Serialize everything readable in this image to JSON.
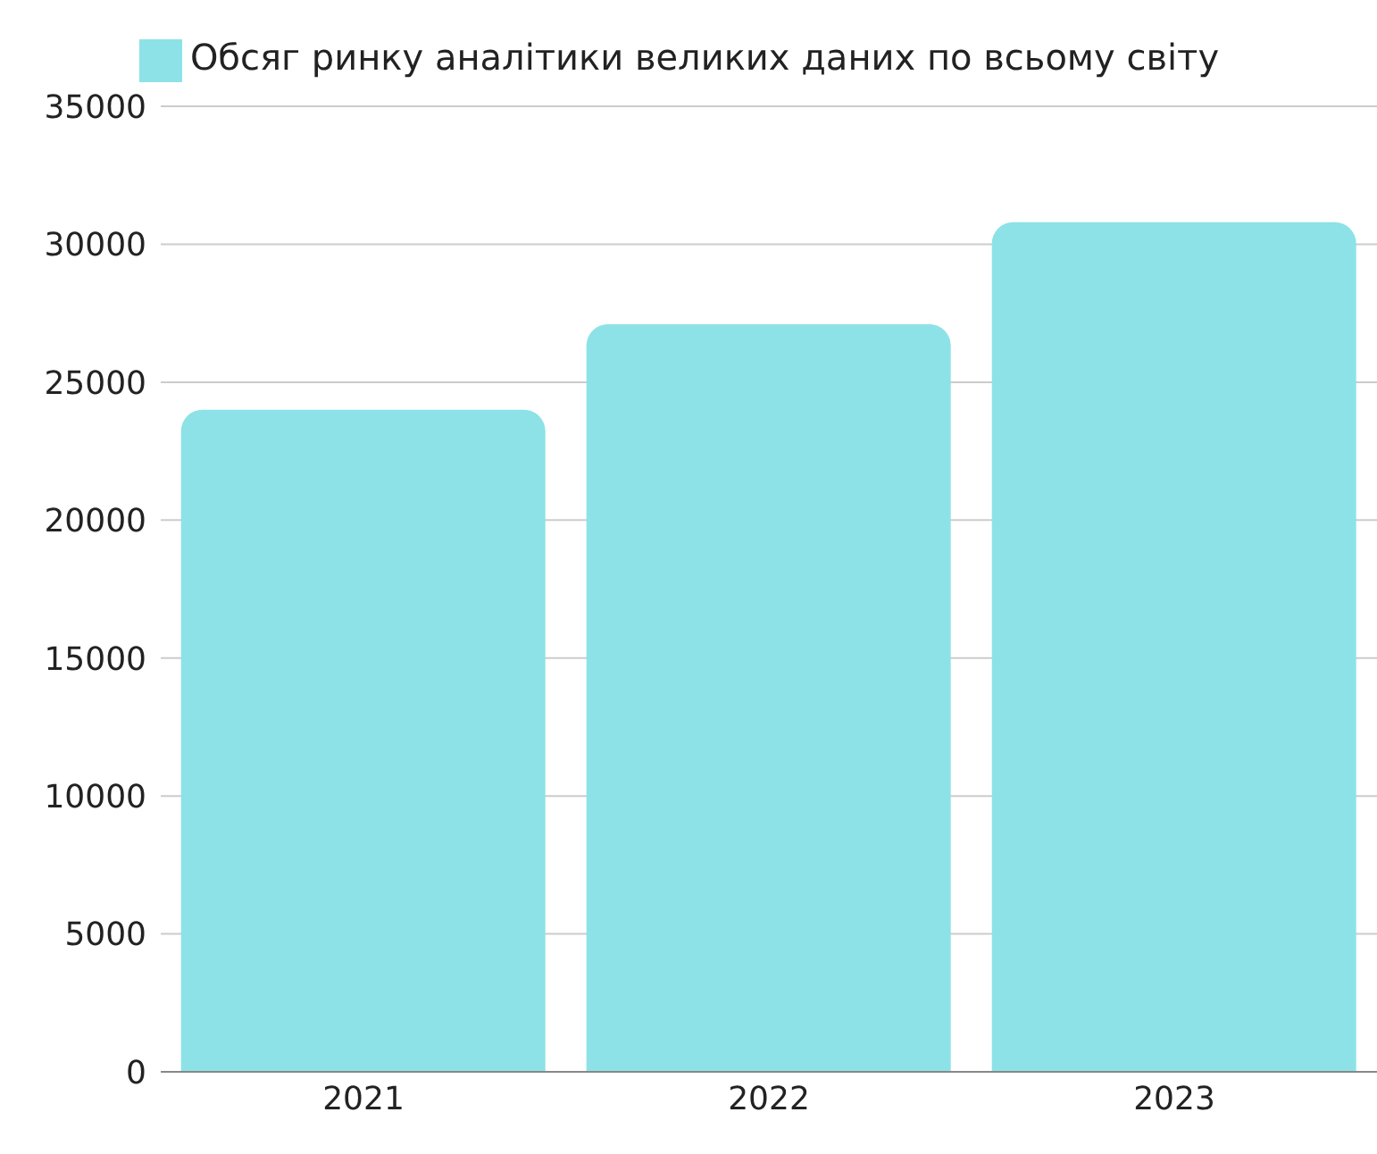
{
  "chart_data": {
    "type": "bar",
    "categories": [
      "2021",
      "2022",
      "2023"
    ],
    "series": [
      {
        "name": "Обсяг ринку аналітики великих даних по всьому світу",
        "color": "#8de2e7",
        "values": [
          24000,
          27100,
          30800
        ]
      }
    ],
    "ylim": [
      0,
      35000
    ],
    "yticks": [
      0,
      5000,
      10000,
      15000,
      20000,
      25000,
      30000,
      35000
    ],
    "grid": "y",
    "legend": "top"
  }
}
